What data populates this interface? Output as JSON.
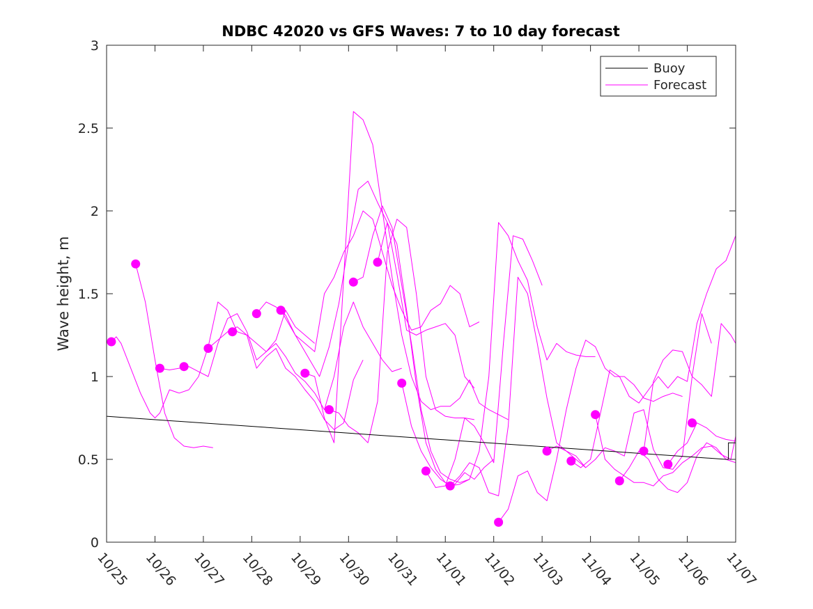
{
  "chart_data": {
    "type": "line",
    "title": "NDBC 42020 vs GFS Waves: 7 to 10 day forecast",
    "xlabel": "",
    "ylabel": "Wave height, m",
    "xlim": [
      0,
      13
    ],
    "ylim": [
      0,
      3
    ],
    "x_tick_labels": [
      "10/25",
      "10/26",
      "10/27",
      "10/28",
      "10/29",
      "10/30",
      "10/31",
      "11/01",
      "11/02",
      "11/03",
      "11/04",
      "11/05",
      "11/06",
      "11/07"
    ],
    "y_tick_labels": [
      "0",
      "0.5",
      "1",
      "1.5",
      "2",
      "2.5",
      "3"
    ],
    "y_ticks": [
      0,
      0.5,
      1,
      1.5,
      2,
      2.5,
      3
    ],
    "grid": false,
    "legend": {
      "position": "top-right",
      "entries": [
        "Buoy",
        "Forecast"
      ]
    },
    "colors": {
      "buoy": "#000000",
      "forecast": "#ff00ff",
      "axis": "#262626"
    },
    "series": [
      {
        "name": "Buoy",
        "color": "#000000",
        "x": [
          0,
          12.8,
          12.85,
          12.85,
          13
        ],
        "y": [
          0.76,
          0.5,
          0.5,
          0.6,
          0.6
        ]
      },
      {
        "name": "Forecast",
        "color": "#ff00ff",
        "segments": [
          {
            "x": [
              0.1,
              0.2,
              0.3,
              0.5,
              0.7,
              0.9,
              1.0,
              1.1
            ],
            "y": [
              1.21,
              1.24,
              1.2,
              1.05,
              0.9,
              0.78,
              0.75,
              0.78
            ]
          },
          {
            "x": [
              0.6,
              0.8,
              1.0,
              1.2,
              1.4,
              1.6,
              1.8,
              2.0,
              2.2
            ],
            "y": [
              1.68,
              1.45,
              1.1,
              0.78,
              0.63,
              0.58,
              0.57,
              0.58,
              0.57
            ]
          },
          {
            "x": [
              1.1,
              1.3,
              1.5,
              1.7,
              1.9,
              2.1,
              2.3,
              2.5,
              2.7,
              2.9,
              3.1,
              3.3,
              3.5,
              3.7,
              3.9,
              4.1,
              4.3
            ],
            "y": [
              1.05,
              1.04,
              1.05,
              1.06,
              1.03,
              1.0,
              1.2,
              1.35,
              1.38,
              1.27,
              1.1,
              1.15,
              1.22,
              1.4,
              1.3,
              1.25,
              1.2
            ]
          },
          {
            "x": [
              1.1,
              1.3,
              1.5,
              1.7,
              1.9,
              2.1,
              2.3,
              2.5,
              2.7,
              2.9,
              3.1,
              3.3,
              3.5,
              3.7,
              3.9,
              4.1,
              4.3,
              4.5,
              4.7,
              4.9,
              5.1,
              5.3
            ],
            "y": [
              0.78,
              0.92,
              0.9,
              0.92,
              1.0,
              1.18,
              1.45,
              1.4,
              1.27,
              1.25,
              1.05,
              1.12,
              1.17,
              1.05,
              1.0,
              0.92,
              0.85,
              0.74,
              0.68,
              0.72,
              0.98,
              1.1
            ]
          },
          {
            "x": [
              2.1,
              2.3,
              2.5,
              2.7,
              2.9,
              3.1,
              3.3,
              3.5,
              3.7,
              3.9,
              4.1,
              4.3,
              4.5,
              4.7,
              4.9,
              5.1,
              5.3,
              5.5,
              5.7,
              5.9,
              6.1
            ],
            "y": [
              1.17,
              1.22,
              1.27,
              1.3,
              1.25,
              1.2,
              1.15,
              1.2,
              1.12,
              1.02,
              0.97,
              0.9,
              0.8,
              1.0,
              1.3,
              1.45,
              1.3,
              1.2,
              1.1,
              1.03,
              1.05
            ]
          },
          {
            "x": [
              3.1,
              3.3,
              3.5,
              3.7,
              3.9,
              4.1,
              4.3,
              4.5,
              4.7,
              4.9,
              5.1,
              5.3,
              5.5,
              5.7,
              5.9,
              6.1,
              6.3,
              6.5,
              6.7,
              6.9,
              7.1,
              7.3,
              7.5,
              7.7
            ],
            "y": [
              1.38,
              1.45,
              1.42,
              1.37,
              1.25,
              1.2,
              1.15,
              1.5,
              1.6,
              1.75,
              1.85,
              2.0,
              1.95,
              1.75,
              1.55,
              1.4,
              1.28,
              1.3,
              1.4,
              1.44,
              1.55,
              1.5,
              1.3,
              1.33
            ]
          },
          {
            "x": [
              3.6,
              3.8,
              4.0,
              4.2,
              4.4,
              4.6,
              4.8,
              5.0,
              5.2,
              5.4,
              5.6,
              5.8,
              6.0,
              6.2,
              6.4,
              6.6,
              6.8,
              7.0,
              7.2,
              7.4,
              7.6
            ],
            "y": [
              1.4,
              1.3,
              1.2,
              1.1,
              1.0,
              1.18,
              1.44,
              1.8,
              2.13,
              2.18,
              2.05,
              1.93,
              1.62,
              1.28,
              1.25,
              1.28,
              1.3,
              1.32,
              1.25,
              1.0,
              0.93
            ]
          },
          {
            "x": [
              4.1,
              4.3,
              4.5,
              4.7,
              4.9,
              5.1,
              5.3,
              5.5,
              5.7,
              5.9,
              6.1,
              6.3,
              6.5,
              6.7,
              6.9,
              7.1,
              7.3,
              7.5,
              7.7,
              7.9,
              8.1,
              8.3
            ],
            "y": [
              1.02,
              1.0,
              0.75,
              0.6,
              1.6,
              2.6,
              2.55,
              2.4,
              2.0,
              1.6,
              1.25,
              1.0,
              0.85,
              0.8,
              0.82,
              0.82,
              0.87,
              0.98,
              0.84,
              0.8,
              0.77,
              0.74
            ]
          },
          {
            "x": [
              4.6,
              4.8,
              5.0,
              5.2,
              5.4,
              5.6,
              5.8,
              6.0,
              6.2,
              6.4,
              6.6,
              6.8,
              7.0,
              7.2,
              7.4,
              7.6
            ],
            "y": [
              0.8,
              0.78,
              0.7,
              0.66,
              0.6,
              0.85,
              1.75,
              1.95,
              1.9,
              1.5,
              1.0,
              0.8,
              0.76,
              0.75,
              0.75,
              0.74
            ]
          },
          {
            "x": [
              5.1,
              5.3,
              5.5,
              5.7,
              5.9,
              6.1,
              6.3,
              6.5,
              6.7,
              6.9,
              7.1,
              7.3,
              7.5
            ],
            "y": [
              1.57,
              1.6,
              1.85,
              2.03,
              1.9,
              1.55,
              1.2,
              0.8,
              0.55,
              0.42,
              0.38,
              0.36,
              0.38
            ]
          },
          {
            "x": [
              5.6,
              5.8,
              6.0,
              6.2,
              6.4,
              6.6,
              6.8,
              7.0,
              7.2,
              7.4,
              7.6,
              7.8,
              8.0
            ],
            "y": [
              1.69,
              1.93,
              1.8,
              1.4,
              0.95,
              0.6,
              0.44,
              0.36,
              0.35,
              0.42,
              0.38,
              0.45,
              0.5
            ]
          },
          {
            "x": [
              6.1,
              6.3,
              6.5,
              6.7,
              6.9,
              7.1,
              7.3,
              7.5,
              7.7,
              7.9,
              8.1,
              8.3,
              8.5,
              8.7,
              8.9,
              9.1,
              9.3,
              9.5,
              9.7,
              9.9,
              10.1
            ],
            "y": [
              0.96,
              0.7,
              0.55,
              0.45,
              0.38,
              0.34,
              0.35,
              0.38,
              0.55,
              1.0,
              1.93,
              1.85,
              1.7,
              1.58,
              1.3,
              1.1,
              1.2,
              1.15,
              1.13,
              1.12,
              1.12
            ]
          },
          {
            "x": [
              6.6,
              6.8,
              7.0,
              7.2,
              7.4,
              7.6,
              7.8,
              8.0,
              8.2,
              8.4,
              8.6,
              8.8,
              9.0
            ],
            "y": [
              0.43,
              0.33,
              0.34,
              0.5,
              0.75,
              0.7,
              0.6,
              0.48,
              1.2,
              1.85,
              1.83,
              1.7,
              1.55
            ]
          },
          {
            "x": [
              7.1,
              7.3,
              7.5,
              7.7,
              7.9,
              8.1,
              8.3,
              8.5,
              8.7,
              8.9,
              9.1,
              9.3,
              9.5,
              9.7,
              9.9
            ],
            "y": [
              0.34,
              0.4,
              0.48,
              0.45,
              0.3,
              0.28,
              0.7,
              1.6,
              1.5,
              1.2,
              0.87,
              0.6,
              0.55,
              0.5,
              0.45
            ]
          },
          {
            "x": [
              8.1,
              8.3,
              8.5,
              8.7,
              8.9,
              9.1,
              9.3,
              9.5,
              9.7,
              9.9,
              10.1,
              10.3,
              10.5,
              10.7,
              10.9,
              11.1,
              11.3,
              11.5,
              11.7,
              11.9
            ],
            "y": [
              0.12,
              0.2,
              0.4,
              0.43,
              0.3,
              0.25,
              0.5,
              0.8,
              1.05,
              1.22,
              1.18,
              1.05,
              1.0,
              1.0,
              0.95,
              0.87,
              0.85,
              0.88,
              0.9,
              0.88
            ]
          },
          {
            "x": [
              9.1,
              9.3,
              9.5,
              9.7,
              9.9,
              10.1,
              10.3,
              10.5,
              10.7,
              10.9,
              11.1,
              11.3,
              11.5,
              11.7,
              11.9,
              12.1,
              12.3,
              12.5
            ],
            "y": [
              0.55,
              0.58,
              0.55,
              0.52,
              0.45,
              0.5,
              0.57,
              0.55,
              0.52,
              0.78,
              0.8,
              0.56,
              0.45,
              0.44,
              0.52,
              1.0,
              1.38,
              1.2
            ]
          },
          {
            "x": [
              9.6,
              9.8,
              10.0,
              10.2,
              10.4,
              10.6,
              10.8,
              11.0,
              11.2,
              11.4,
              11.6,
              11.8,
              12.0,
              12.2,
              12.4,
              12.6,
              12.8,
              13.0
            ],
            "y": [
              0.49,
              0.45,
              0.5,
              0.77,
              1.04,
              1.0,
              0.88,
              0.84,
              0.92,
              1.0,
              0.93,
              1.0,
              0.97,
              1.32,
              1.5,
              1.65,
              1.7,
              1.85
            ]
          },
          {
            "x": [
              10.1,
              10.3,
              10.5,
              10.7,
              10.9,
              11.1,
              11.3,
              11.5,
              11.7,
              11.9,
              12.1,
              12.3,
              12.5,
              12.7,
              12.9,
              13.0
            ],
            "y": [
              0.77,
              0.5,
              0.44,
              0.4,
              0.36,
              0.36,
              0.34,
              0.4,
              0.42,
              0.48,
              0.52,
              0.57,
              0.58,
              0.53,
              0.5,
              0.64
            ]
          },
          {
            "x": [
              10.6,
              10.8,
              11.0,
              11.2,
              11.4,
              11.6,
              11.8,
              12.0,
              12.2,
              12.4,
              12.6,
              12.8,
              13.0
            ],
            "y": [
              0.37,
              0.45,
              0.55,
              0.5,
              0.38,
              0.32,
              0.3,
              0.36,
              0.52,
              0.6,
              0.57,
              0.5,
              0.48
            ]
          },
          {
            "x": [
              11.1,
              11.3,
              11.5,
              11.7,
              11.9,
              12.1,
              12.3,
              12.5,
              12.7,
              12.9,
              13.0
            ],
            "y": [
              0.55,
              0.97,
              1.1,
              1.16,
              1.15,
              1.0,
              0.95,
              0.88,
              1.32,
              1.25,
              1.2
            ]
          },
          {
            "x": [
              11.6,
              11.8,
              12.0,
              12.2,
              12.4,
              12.6,
              12.8,
              13.0
            ],
            "y": [
              0.47,
              0.55,
              0.6,
              0.72,
              0.69,
              0.64,
              0.62,
              0.61
            ]
          }
        ],
        "markers": {
          "x": [
            0.1,
            0.6,
            1.1,
            1.6,
            2.1,
            2.6,
            3.1,
            3.6,
            4.1,
            4.6,
            5.1,
            5.6,
            6.1,
            6.6,
            7.1,
            8.1,
            9.1,
            9.6,
            10.1,
            10.6,
            11.1,
            11.6,
            12.1
          ],
          "y": [
            1.21,
            1.68,
            1.05,
            1.06,
            1.17,
            1.27,
            1.38,
            1.4,
            1.02,
            0.8,
            1.57,
            1.69,
            0.96,
            0.43,
            0.34,
            0.12,
            0.55,
            0.49,
            0.77,
            0.37,
            0.55,
            0.47,
            0.72
          ]
        }
      }
    ]
  }
}
